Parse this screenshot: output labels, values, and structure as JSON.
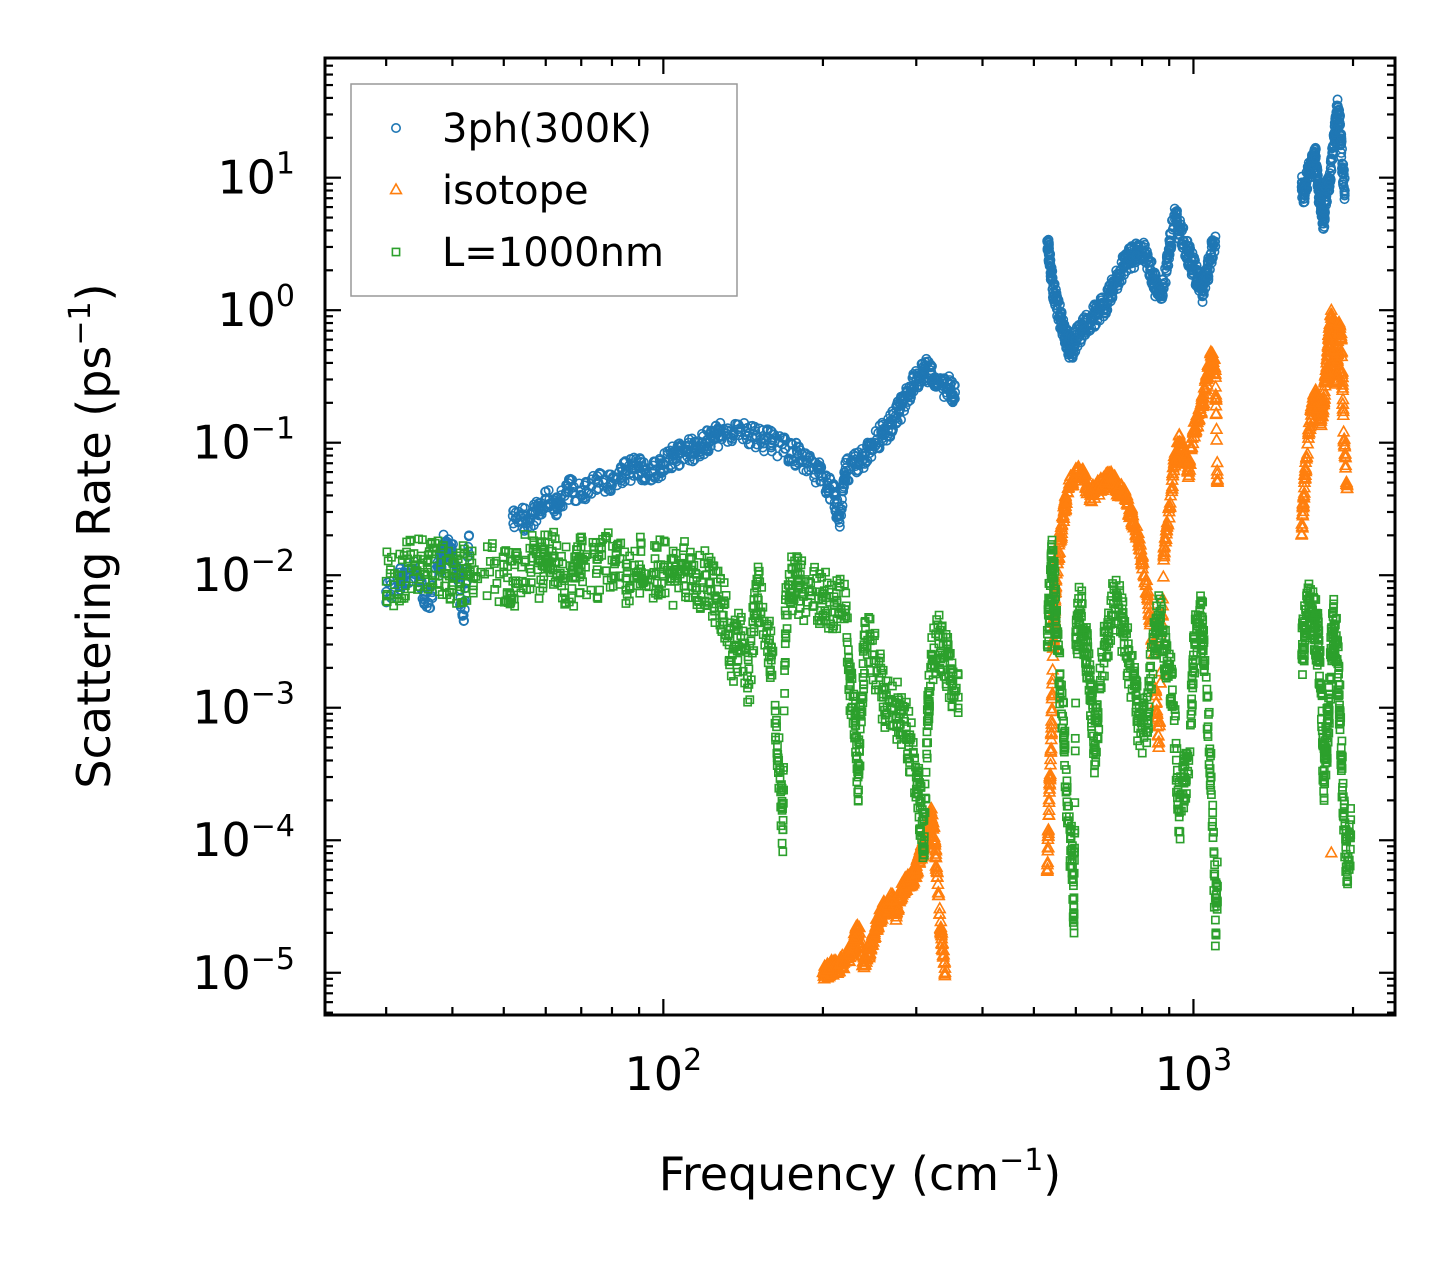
{
  "chart_data": {
    "type": "scatter",
    "title": "",
    "xlabel": {
      "main": "Frequency (cm",
      "sup": "−1",
      "tail": ")"
    },
    "ylabel": {
      "main": "Scattering Rate (ps",
      "sup": "−1",
      "tail": ")"
    },
    "x_scale": "log",
    "y_scale": "log",
    "xlim": [
      23,
      2400
    ],
    "ylim": [
      4.8e-06,
      80
    ],
    "x_ticks": [
      {
        "value": 100,
        "base": "10",
        "exp": "2"
      },
      {
        "value": 1000,
        "base": "10",
        "exp": "3"
      }
    ],
    "y_ticks": [
      {
        "value": 1e-05,
        "base": "10",
        "exp": "−5"
      },
      {
        "value": 0.0001,
        "base": "10",
        "exp": "−4"
      },
      {
        "value": 0.001,
        "base": "10",
        "exp": "−3"
      },
      {
        "value": 0.01,
        "base": "10",
        "exp": "−2"
      },
      {
        "value": 0.1,
        "base": "10",
        "exp": "−1"
      },
      {
        "value": 1,
        "base": "10",
        "exp": "0"
      },
      {
        "value": 10,
        "base": "10",
        "exp": "1"
      }
    ],
    "legend_position": "top-left",
    "series": [
      {
        "name": "3ph(300K)",
        "marker": "circle",
        "color": "#1f77b4",
        "points": [
          [
            30,
            0.0075
          ],
          [
            32,
            0.0095
          ],
          [
            34,
            0.011
          ],
          [
            36,
            0.0062
          ],
          [
            38,
            0.012
          ],
          [
            38.5,
            0.017
          ],
          [
            40,
            0.015
          ],
          [
            42,
            0.005
          ],
          [
            43,
            0.02
          ],
          [
            52,
            0.028
          ],
          [
            55,
            0.026
          ],
          [
            58,
            0.03
          ],
          [
            60,
            0.037
          ],
          [
            63,
            0.034
          ],
          [
            66,
            0.045
          ],
          [
            70,
            0.04
          ],
          [
            75,
            0.05
          ],
          [
            80,
            0.048
          ],
          [
            85,
            0.062
          ],
          [
            90,
            0.065
          ],
          [
            95,
            0.06
          ],
          [
            100,
            0.07
          ],
          [
            105,
            0.08
          ],
          [
            110,
            0.085
          ],
          [
            115,
            0.09
          ],
          [
            120,
            0.1
          ],
          [
            125,
            0.11
          ],
          [
            130,
            0.12
          ],
          [
            140,
            0.13
          ],
          [
            150,
            0.11
          ],
          [
            160,
            0.1
          ],
          [
            170,
            0.09
          ],
          [
            180,
            0.08
          ],
          [
            190,
            0.065
          ],
          [
            200,
            0.055
          ],
          [
            210,
            0.04
          ],
          [
            215,
            0.025
          ],
          [
            220,
            0.06
          ],
          [
            230,
            0.07
          ],
          [
            240,
            0.08
          ],
          [
            250,
            0.1
          ],
          [
            260,
            0.12
          ],
          [
            270,
            0.14
          ],
          [
            280,
            0.18
          ],
          [
            290,
            0.23
          ],
          [
            300,
            0.3
          ],
          [
            310,
            0.36
          ],
          [
            320,
            0.33
          ],
          [
            330,
            0.28
          ],
          [
            345,
            0.26
          ],
          [
            355,
            0.24
          ],
          [
            530,
            3.3
          ],
          [
            535,
            2.4
          ],
          [
            540,
            1.7
          ],
          [
            550,
            1.2
          ],
          [
            560,
            0.9
          ],
          [
            570,
            0.7
          ],
          [
            580,
            0.55
          ],
          [
            590,
            0.5
          ],
          [
            600,
            0.6
          ],
          [
            620,
            0.75
          ],
          [
            640,
            0.85
          ],
          [
            660,
            0.95
          ],
          [
            680,
            1.1
          ],
          [
            700,
            1.4
          ],
          [
            720,
            1.8
          ],
          [
            740,
            2.2
          ],
          [
            760,
            2.5
          ],
          [
            780,
            2.6
          ],
          [
            800,
            2.8
          ],
          [
            820,
            2.4
          ],
          [
            840,
            1.7
          ],
          [
            860,
            1.3
          ],
          [
            880,
            1.6
          ],
          [
            900,
            2.8
          ],
          [
            920,
            5.2
          ],
          [
            940,
            4.2
          ],
          [
            960,
            3.3
          ],
          [
            980,
            2.6
          ],
          [
            1000,
            2.1
          ],
          [
            1020,
            1.7
          ],
          [
            1040,
            1.4
          ],
          [
            1060,
            1.8
          ],
          [
            1080,
            2.7
          ],
          [
            1100,
            3.6
          ],
          [
            1600,
            8.5
          ],
          [
            1620,
            7.5
          ],
          [
            1650,
            11
          ],
          [
            1680,
            12.5
          ],
          [
            1700,
            14
          ],
          [
            1720,
            8
          ],
          [
            1740,
            6.5
          ],
          [
            1760,
            4.5
          ],
          [
            1780,
            7.5
          ],
          [
            1800,
            9
          ],
          [
            1830,
            15
          ],
          [
            1850,
            22
          ],
          [
            1870,
            35
          ],
          [
            1890,
            25
          ],
          [
            1910,
            12
          ],
          [
            1930,
            8
          ]
        ]
      },
      {
        "name": "isotope",
        "marker": "triangle",
        "color": "#ff7f0e",
        "points": [
          [
            200,
            1e-05
          ],
          [
            205,
            1.05e-05
          ],
          [
            210,
            1.1e-05
          ],
          [
            215,
            1.15e-05
          ],
          [
            220,
            1.2e-05
          ],
          [
            225,
            1.4e-05
          ],
          [
            230,
            1.8e-05
          ],
          [
            233,
            2.2e-05
          ],
          [
            238,
            1.2e-05
          ],
          [
            245,
            1.5e-05
          ],
          [
            250,
            2e-05
          ],
          [
            255,
            2.5e-05
          ],
          [
            260,
            3e-05
          ],
          [
            265,
            3.2e-05
          ],
          [
            270,
            3.5e-05
          ],
          [
            275,
            2.8e-05
          ],
          [
            280,
            4e-05
          ],
          [
            285,
            4.5e-05
          ],
          [
            290,
            4.8e-05
          ],
          [
            295,
            5.2e-05
          ],
          [
            300,
            6e-05
          ],
          [
            305,
            7.5e-05
          ],
          [
            310,
            9e-05
          ],
          [
            315,
            0.00012
          ],
          [
            320,
            0.00016
          ],
          [
            325,
            0.0001
          ],
          [
            330,
            4e-05
          ],
          [
            335,
            1.8e-05
          ],
          [
            340,
            1e-05
          ],
          [
            530,
            5.8e-05
          ],
          [
            535,
            0.00023
          ],
          [
            540,
            0.0007
          ],
          [
            545,
            0.004
          ],
          [
            550,
            0.009
          ],
          [
            560,
            0.018
          ],
          [
            570,
            0.03
          ],
          [
            580,
            0.045
          ],
          [
            600,
            0.06
          ],
          [
            620,
            0.055
          ],
          [
            640,
            0.04
          ],
          [
            660,
            0.045
          ],
          [
            680,
            0.05
          ],
          [
            700,
            0.055
          ],
          [
            720,
            0.045
          ],
          [
            740,
            0.04
          ],
          [
            760,
            0.03
          ],
          [
            780,
            0.022
          ],
          [
            800,
            0.013
          ],
          [
            820,
            0.007
          ],
          [
            840,
            0.0025
          ],
          [
            860,
            0.0005
          ],
          [
            880,
            0.015
          ],
          [
            900,
            0.03
          ],
          [
            920,
            0.07
          ],
          [
            940,
            0.1
          ],
          [
            960,
            0.08
          ],
          [
            980,
            0.06
          ],
          [
            1000,
            0.12
          ],
          [
            1020,
            0.15
          ],
          [
            1040,
            0.2
          ],
          [
            1060,
            0.3
          ],
          [
            1080,
            0.45
          ],
          [
            1100,
            0.35
          ],
          [
            1110,
            0.05
          ],
          [
            1600,
            0.02
          ],
          [
            1620,
            0.05
          ],
          [
            1650,
            0.12
          ],
          [
            1680,
            0.2
          ],
          [
            1700,
            0.22
          ],
          [
            1720,
            0.18
          ],
          [
            1740,
            0.15
          ],
          [
            1760,
            0.2
          ],
          [
            1780,
            0.35
          ],
          [
            1800,
            0.6
          ],
          [
            1820,
            0.9
          ],
          [
            1840,
            0.5
          ],
          [
            1860,
            0.3
          ],
          [
            1880,
            0.8
          ],
          [
            1900,
            0.6
          ],
          [
            1920,
            0.12
          ],
          [
            1950,
            0.045
          ],
          [
            1820,
            8e-05
          ]
        ]
      },
      {
        "name": "L=1000nm",
        "marker": "square",
        "color": "#2ca02c",
        "points": [
          [
            30,
            0.009
          ],
          [
            32,
            0.01
          ],
          [
            34,
            0.012
          ],
          [
            36,
            0.013
          ],
          [
            38,
            0.011
          ],
          [
            40,
            0.0095
          ],
          [
            42,
            0.01
          ],
          [
            44,
            0.011
          ],
          [
            50,
            0.0105
          ],
          [
            52,
            0.009
          ],
          [
            55,
            0.013
          ],
          [
            58,
            0.011
          ],
          [
            60,
            0.0125
          ],
          [
            62,
            0.014
          ],
          [
            65,
            0.01
          ],
          [
            68,
            0.0095
          ],
          [
            70,
            0.012
          ],
          [
            75,
            0.011
          ],
          [
            80,
            0.013
          ],
          [
            85,
            0.0095
          ],
          [
            90,
            0.012
          ],
          [
            95,
            0.01
          ],
          [
            100,
            0.0115
          ],
          [
            105,
            0.009
          ],
          [
            110,
            0.011
          ],
          [
            115,
            0.008
          ],
          [
            120,
            0.01
          ],
          [
            125,
            0.007
          ],
          [
            130,
            0.006
          ],
          [
            135,
            0.0025
          ],
          [
            140,
            0.0035
          ],
          [
            145,
            0.0015
          ],
          [
            150,
            0.008
          ],
          [
            155,
            0.0045
          ],
          [
            160,
            0.0025
          ],
          [
            165,
            0.0004
          ],
          [
            168,
            0.00012
          ],
          [
            170,
            0.005
          ],
          [
            175,
            0.009
          ],
          [
            180,
            0.008
          ],
          [
            190,
            0.007
          ],
          [
            200,
            0.0065
          ],
          [
            210,
            0.006
          ],
          [
            220,
            0.0055
          ],
          [
            225,
            0.0015
          ],
          [
            230,
            0.0008
          ],
          [
            233,
            0.0003
          ],
          [
            236,
            0.0009
          ],
          [
            240,
            0.0035
          ],
          [
            250,
            0.0025
          ],
          [
            260,
            0.0012
          ],
          [
            270,
            0.001
          ],
          [
            280,
            0.0009
          ],
          [
            290,
            0.0006
          ],
          [
            300,
            0.0003
          ],
          [
            305,
            0.00018
          ],
          [
            310,
            0.0001
          ],
          [
            315,
            0.0008
          ],
          [
            320,
            0.002
          ],
          [
            330,
            0.0035
          ],
          [
            340,
            0.0025
          ],
          [
            350,
            0.0015
          ],
          [
            360,
            0.0012
          ],
          [
            530,
            0.003
          ],
          [
            535,
            0.006
          ],
          [
            540,
            0.012
          ],
          [
            545,
            0.009
          ],
          [
            550,
            0.005
          ],
          [
            560,
            0.0015
          ],
          [
            570,
            0.0006
          ],
          [
            580,
            0.00014
          ],
          [
            590,
            8e-05
          ],
          [
            595,
            2.5e-05
          ],
          [
            600,
            0.003
          ],
          [
            610,
            0.0055
          ],
          [
            620,
            0.004
          ],
          [
            630,
            0.0025
          ],
          [
            640,
            0.0012
          ],
          [
            650,
            0.0005
          ],
          [
            660,
            0.0008
          ],
          [
            680,
            0.003
          ],
          [
            700,
            0.005
          ],
          [
            720,
            0.006
          ],
          [
            740,
            0.0035
          ],
          [
            760,
            0.002
          ],
          [
            780,
            0.001
          ],
          [
            800,
            0.0007
          ],
          [
            820,
            0.0009
          ],
          [
            840,
            0.003
          ],
          [
            860,
            0.0045
          ],
          [
            880,
            0.003
          ],
          [
            900,
            0.002
          ],
          [
            920,
            0.0008
          ],
          [
            940,
            0.00015
          ],
          [
            960,
            0.0003
          ],
          [
            980,
            0.0004
          ],
          [
            1000,
            0.0025
          ],
          [
            1020,
            0.005
          ],
          [
            1040,
            0.004
          ],
          [
            1060,
            0.0012
          ],
          [
            1080,
            0.0003
          ],
          [
            1100,
            2.5e-05
          ],
          [
            1110,
            4.5e-05
          ],
          [
            1600,
            0.0025
          ],
          [
            1620,
            0.0035
          ],
          [
            1650,
            0.006
          ],
          [
            1680,
            0.005
          ],
          [
            1700,
            0.004
          ],
          [
            1720,
            0.003
          ],
          [
            1740,
            0.0015
          ],
          [
            1760,
            0.0003
          ],
          [
            1780,
            0.0005
          ],
          [
            1800,
            0.001
          ],
          [
            1820,
            0.0025
          ],
          [
            1840,
            0.004
          ],
          [
            1860,
            0.0035
          ],
          [
            1880,
            0.0015
          ],
          [
            1900,
            0.0005
          ],
          [
            1920,
            0.00015
          ],
          [
            1950,
            6e-05
          ],
          [
            1980,
            0.00011
          ]
        ]
      }
    ]
  }
}
